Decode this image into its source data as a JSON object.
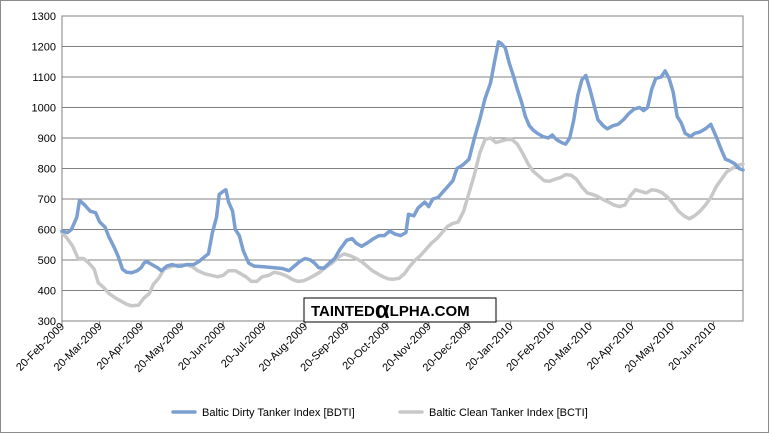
{
  "chart_data": {
    "type": "line",
    "ylim": [
      300,
      1300
    ],
    "yticks": [
      300,
      400,
      500,
      600,
      700,
      800,
      900,
      1000,
      1100,
      1200,
      1300
    ],
    "xlim": [
      "2009-02-20",
      "2010-07-12"
    ],
    "xticks": [
      "20-Feb-2009",
      "20-Mar-2009",
      "20-Apr-2009",
      "20-May-2009",
      "20-Jun-2009",
      "20-Jul-2009",
      "20-Aug-2009",
      "20-Sep-2009",
      "20-Oct-2009",
      "20-Nov-2009",
      "20-Dec-2009",
      "20-Jan-2010",
      "20-Feb-2010",
      "20-Mar-2010",
      "20-Apr-2010",
      "20-May-2010",
      "20-Jun-2010"
    ],
    "grid": "horizontal",
    "legend_position": "bottom",
    "series": [
      {
        "name": "Baltic Dirty Tanker Index [BDTI]",
        "color": "#7b9fd0",
        "points": [
          [
            "2009-02-20",
            595
          ],
          [
            "2009-02-24",
            590
          ],
          [
            "2009-02-27",
            600
          ],
          [
            "2009-03-03",
            640
          ],
          [
            "2009-03-05",
            695
          ],
          [
            "2009-03-09",
            680
          ],
          [
            "2009-03-13",
            660
          ],
          [
            "2009-03-17",
            655
          ],
          [
            "2009-03-20",
            625
          ],
          [
            "2009-03-24",
            608
          ],
          [
            "2009-03-27",
            575
          ],
          [
            "2009-03-31",
            540
          ],
          [
            "2009-04-03",
            510
          ],
          [
            "2009-04-06",
            470
          ],
          [
            "2009-04-09",
            460
          ],
          [
            "2009-04-13",
            458
          ],
          [
            "2009-04-17",
            465
          ],
          [
            "2009-04-20",
            475
          ],
          [
            "2009-04-22",
            490
          ],
          [
            "2009-04-24",
            495
          ],
          [
            "2009-04-28",
            485
          ],
          [
            "2009-05-02",
            475
          ],
          [
            "2009-05-05",
            465
          ],
          [
            "2009-05-09",
            480
          ],
          [
            "2009-05-13",
            485
          ],
          [
            "2009-05-17",
            480
          ],
          [
            "2009-05-20",
            480
          ],
          [
            "2009-05-24",
            485
          ],
          [
            "2009-05-29",
            485
          ],
          [
            "2009-06-02",
            495
          ],
          [
            "2009-06-06",
            510
          ],
          [
            "2009-06-09",
            520
          ],
          [
            "2009-06-12",
            590
          ],
          [
            "2009-06-15",
            640
          ],
          [
            "2009-06-17",
            715
          ],
          [
            "2009-06-20",
            725
          ],
          [
            "2009-06-22",
            730
          ],
          [
            "2009-06-24",
            690
          ],
          [
            "2009-06-27",
            660
          ],
          [
            "2009-06-29",
            600
          ],
          [
            "2009-07-02",
            580
          ],
          [
            "2009-07-05",
            530
          ],
          [
            "2009-07-09",
            490
          ],
          [
            "2009-07-13",
            480
          ],
          [
            "2009-07-20",
            478
          ],
          [
            "2009-07-27",
            475
          ],
          [
            "2009-08-03",
            472
          ],
          [
            "2009-08-08",
            465
          ],
          [
            "2009-08-12",
            480
          ],
          [
            "2009-08-16",
            495
          ],
          [
            "2009-08-20",
            505
          ],
          [
            "2009-08-24",
            500
          ],
          [
            "2009-08-27",
            490
          ],
          [
            "2009-08-30",
            475
          ],
          [
            "2009-09-03",
            473
          ],
          [
            "2009-09-07",
            490
          ],
          [
            "2009-09-11",
            505
          ],
          [
            "2009-09-15",
            535
          ],
          [
            "2009-09-20",
            565
          ],
          [
            "2009-09-24",
            570
          ],
          [
            "2009-09-27",
            555
          ],
          [
            "2009-10-01",
            545
          ],
          [
            "2009-10-05",
            555
          ],
          [
            "2009-10-10",
            570
          ],
          [
            "2009-10-14",
            580
          ],
          [
            "2009-10-18",
            580
          ],
          [
            "2009-10-22",
            595
          ],
          [
            "2009-10-26",
            585
          ],
          [
            "2009-10-30",
            580
          ],
          [
            "2009-11-03",
            590
          ],
          [
            "2009-11-05",
            650
          ],
          [
            "2009-11-09",
            645
          ],
          [
            "2009-11-12",
            670
          ],
          [
            "2009-11-17",
            690
          ],
          [
            "2009-11-20",
            675
          ],
          [
            "2009-11-23",
            700
          ],
          [
            "2009-11-27",
            705
          ],
          [
            "2009-11-30",
            720
          ],
          [
            "2009-12-04",
            740
          ],
          [
            "2009-12-08",
            760
          ],
          [
            "2009-12-11",
            800
          ],
          [
            "2009-12-15",
            810
          ],
          [
            "2009-12-20",
            830
          ],
          [
            "2009-12-24",
            900
          ],
          [
            "2009-12-28",
            960
          ],
          [
            "2010-01-01",
            1030
          ],
          [
            "2010-01-05",
            1080
          ],
          [
            "2010-01-08",
            1150
          ],
          [
            "2010-01-11",
            1215
          ],
          [
            "2010-01-13",
            1210
          ],
          [
            "2010-01-16",
            1195
          ],
          [
            "2010-01-19",
            1145
          ],
          [
            "2010-01-22",
            1105
          ],
          [
            "2010-01-25",
            1060
          ],
          [
            "2010-01-28",
            1020
          ],
          [
            "2010-01-31",
            970
          ],
          [
            "2010-02-03",
            940
          ],
          [
            "2010-02-06",
            925
          ],
          [
            "2010-02-09",
            915
          ],
          [
            "2010-02-13",
            905
          ],
          [
            "2010-02-17",
            900
          ],
          [
            "2010-02-20",
            910
          ],
          [
            "2010-02-23",
            895
          ],
          [
            "2010-02-27",
            885
          ],
          [
            "2010-03-02",
            880
          ],
          [
            "2010-03-05",
            900
          ],
          [
            "2010-03-08",
            960
          ],
          [
            "2010-03-11",
            1040
          ],
          [
            "2010-03-14",
            1090
          ],
          [
            "2010-03-17",
            1105
          ],
          [
            "2010-03-20",
            1060
          ],
          [
            "2010-03-23",
            1010
          ],
          [
            "2010-03-26",
            960
          ],
          [
            "2010-03-30",
            940
          ],
          [
            "2010-04-02",
            930
          ],
          [
            "2010-04-06",
            940
          ],
          [
            "2010-04-10",
            945
          ],
          [
            "2010-04-14",
            960
          ],
          [
            "2010-04-18",
            980
          ],
          [
            "2010-04-22",
            995
          ],
          [
            "2010-04-26",
            1000
          ],
          [
            "2010-04-29",
            990
          ],
          [
            "2010-05-02",
            1000
          ],
          [
            "2010-05-05",
            1060
          ],
          [
            "2010-05-08",
            1095
          ],
          [
            "2010-05-12",
            1100
          ],
          [
            "2010-05-15",
            1120
          ],
          [
            "2010-05-18",
            1095
          ],
          [
            "2010-05-21",
            1050
          ],
          [
            "2010-05-24",
            970
          ],
          [
            "2010-05-27",
            950
          ],
          [
            "2010-05-30",
            915
          ],
          [
            "2010-06-03",
            905
          ],
          [
            "2010-06-06",
            915
          ],
          [
            "2010-06-10",
            920
          ],
          [
            "2010-06-14",
            930
          ],
          [
            "2010-06-18",
            945
          ],
          [
            "2010-06-22",
            905
          ],
          [
            "2010-06-26",
            860
          ],
          [
            "2010-06-29",
            830
          ],
          [
            "2010-07-02",
            825
          ],
          [
            "2010-07-06",
            815
          ],
          [
            "2010-07-09",
            800
          ],
          [
            "2010-07-12",
            795
          ]
        ]
      },
      {
        "name": "Baltic Clean Tanker Index [BCTI]",
        "color": "#c8c8c8",
        "points": [
          [
            "2009-02-20",
            590
          ],
          [
            "2009-02-24",
            570
          ],
          [
            "2009-02-28",
            545
          ],
          [
            "2009-03-04",
            505
          ],
          [
            "2009-03-08",
            505
          ],
          [
            "2009-03-12",
            490
          ],
          [
            "2009-03-16",
            470
          ],
          [
            "2009-03-19",
            425
          ],
          [
            "2009-03-23",
            410
          ],
          [
            "2009-03-27",
            390
          ],
          [
            "2009-04-01",
            375
          ],
          [
            "2009-04-05",
            365
          ],
          [
            "2009-04-09",
            355
          ],
          [
            "2009-04-13",
            350
          ],
          [
            "2009-04-18",
            352
          ],
          [
            "2009-04-22",
            375
          ],
          [
            "2009-04-26",
            390
          ],
          [
            "2009-04-29",
            420
          ],
          [
            "2009-05-03",
            440
          ],
          [
            "2009-05-07",
            470
          ],
          [
            "2009-05-12",
            478
          ],
          [
            "2009-05-16",
            483
          ],
          [
            "2009-05-20",
            484
          ],
          [
            "2009-05-24",
            484
          ],
          [
            "2009-05-28",
            478
          ],
          [
            "2009-06-01",
            465
          ],
          [
            "2009-06-06",
            455
          ],
          [
            "2009-06-11",
            450
          ],
          [
            "2009-06-16",
            445
          ],
          [
            "2009-06-20",
            450
          ],
          [
            "2009-06-24",
            465
          ],
          [
            "2009-06-29",
            465
          ],
          [
            "2009-07-03",
            455
          ],
          [
            "2009-07-07",
            445
          ],
          [
            "2009-07-11",
            430
          ],
          [
            "2009-07-15",
            430
          ],
          [
            "2009-07-19",
            445
          ],
          [
            "2009-07-24",
            450
          ],
          [
            "2009-07-28",
            460
          ],
          [
            "2009-08-02",
            455
          ],
          [
            "2009-08-06",
            448
          ],
          [
            "2009-08-11",
            435
          ],
          [
            "2009-08-15",
            430
          ],
          [
            "2009-08-19",
            432
          ],
          [
            "2009-08-23",
            440
          ],
          [
            "2009-08-27",
            450
          ],
          [
            "2009-08-31",
            460
          ],
          [
            "2009-09-04",
            475
          ],
          [
            "2009-09-09",
            490
          ],
          [
            "2009-09-14",
            510
          ],
          [
            "2009-09-18",
            520
          ],
          [
            "2009-09-22",
            515
          ],
          [
            "2009-09-27",
            505
          ],
          [
            "2009-10-01",
            495
          ],
          [
            "2009-10-05",
            480
          ],
          [
            "2009-10-09",
            465
          ],
          [
            "2009-10-13",
            455
          ],
          [
            "2009-10-17",
            445
          ],
          [
            "2009-10-21",
            438
          ],
          [
            "2009-10-25",
            437
          ],
          [
            "2009-10-29",
            440
          ],
          [
            "2009-11-02",
            455
          ],
          [
            "2009-11-06",
            480
          ],
          [
            "2009-11-10",
            500
          ],
          [
            "2009-11-14",
            515
          ],
          [
            "2009-11-18",
            535
          ],
          [
            "2009-11-22",
            555
          ],
          [
            "2009-11-26",
            570
          ],
          [
            "2009-11-30",
            590
          ],
          [
            "2009-12-04",
            610
          ],
          [
            "2009-12-08",
            620
          ],
          [
            "2009-12-12",
            625
          ],
          [
            "2009-12-16",
            660
          ],
          [
            "2009-12-20",
            720
          ],
          [
            "2009-12-24",
            780
          ],
          [
            "2009-12-28",
            850
          ],
          [
            "2010-01-01",
            895
          ],
          [
            "2010-01-05",
            900
          ],
          [
            "2010-01-09",
            885
          ],
          [
            "2010-01-13",
            890
          ],
          [
            "2010-01-17",
            895
          ],
          [
            "2010-01-21",
            895
          ],
          [
            "2010-01-25",
            880
          ],
          [
            "2010-01-29",
            850
          ],
          [
            "2010-02-02",
            815
          ],
          [
            "2010-02-06",
            790
          ],
          [
            "2010-02-10",
            775
          ],
          [
            "2010-02-14",
            760
          ],
          [
            "2010-02-18",
            758
          ],
          [
            "2010-02-22",
            765
          ],
          [
            "2010-02-26",
            770
          ],
          [
            "2010-03-02",
            780
          ],
          [
            "2010-03-06",
            778
          ],
          [
            "2010-03-10",
            765
          ],
          [
            "2010-03-14",
            740
          ],
          [
            "2010-03-18",
            720
          ],
          [
            "2010-03-22",
            715
          ],
          [
            "2010-03-26",
            708
          ],
          [
            "2010-03-30",
            698
          ],
          [
            "2010-04-03",
            690
          ],
          [
            "2010-04-07",
            680
          ],
          [
            "2010-04-11",
            675
          ],
          [
            "2010-04-15",
            680
          ],
          [
            "2010-04-19",
            710
          ],
          [
            "2010-04-23",
            730
          ],
          [
            "2010-04-27",
            725
          ],
          [
            "2010-05-01",
            720
          ],
          [
            "2010-05-05",
            730
          ],
          [
            "2010-05-09",
            728
          ],
          [
            "2010-05-13",
            720
          ],
          [
            "2010-05-17",
            705
          ],
          [
            "2010-05-21",
            685
          ],
          [
            "2010-05-25",
            660
          ],
          [
            "2010-05-29",
            645
          ],
          [
            "2010-06-02",
            635
          ],
          [
            "2010-06-06",
            645
          ],
          [
            "2010-06-10",
            660
          ],
          [
            "2010-06-14",
            680
          ],
          [
            "2010-06-18",
            705
          ],
          [
            "2010-06-22",
            740
          ],
          [
            "2010-06-26",
            765
          ],
          [
            "2010-06-30",
            790
          ],
          [
            "2010-07-04",
            800
          ],
          [
            "2010-07-08",
            810
          ],
          [
            "2010-07-12",
            815
          ]
        ]
      }
    ]
  },
  "watermark": {
    "prefix": "TAINTED",
    "alpha": "α",
    "suffix": "LPHA.COM"
  }
}
